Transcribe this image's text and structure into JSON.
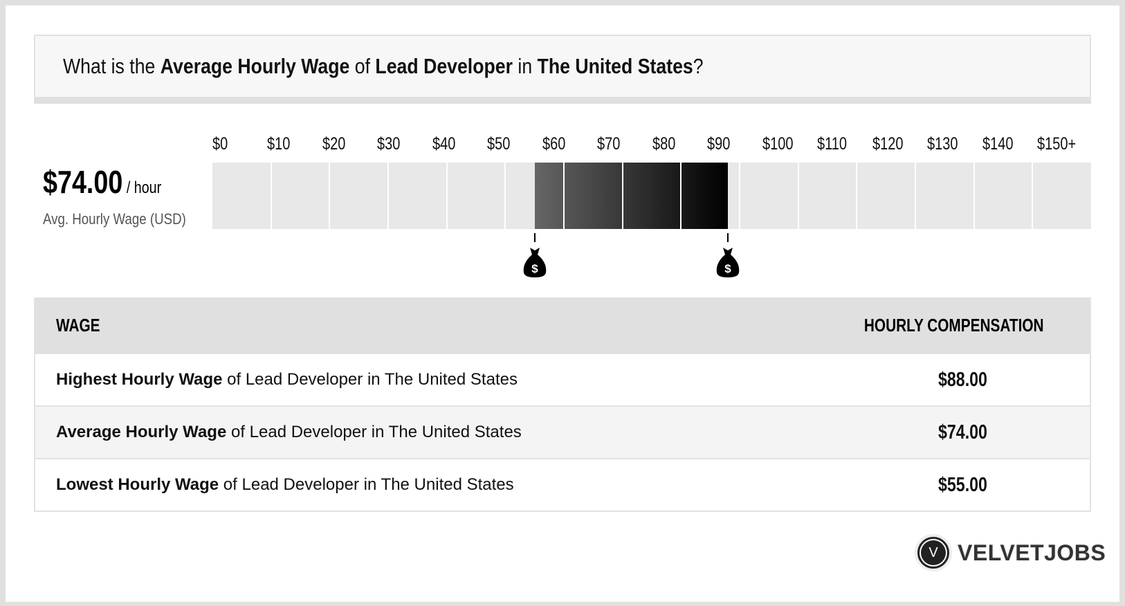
{
  "header": {
    "p1": "What is the ",
    "b1": "Average Hourly Wage",
    "p2": " of ",
    "b2": "Lead Developer",
    "p3": " in ",
    "b3": "The United States",
    "p4": "?"
  },
  "summary": {
    "value": "$74.00",
    "unit": " / hour",
    "label": "Avg. Hourly Wage (USD)"
  },
  "chart_data": {
    "type": "bar",
    "tick_labels": [
      "$0",
      "$10",
      "$20",
      "$30",
      "$40",
      "$50",
      "$60",
      "$70",
      "$80",
      "$90",
      "$100",
      "$110",
      "$120",
      "$130",
      "$140",
      "$150+"
    ],
    "xlim": [
      0,
      150
    ],
    "segments": 15,
    "range": {
      "low": 55,
      "high": 88,
      "average": 74
    },
    "fill_colors": [
      "#666666",
      "#000000"
    ],
    "track_color": "#e8e8e8",
    "markers": [
      {
        "value": 55,
        "icon": "money-bag-icon"
      },
      {
        "value": 88,
        "icon": "money-bag-icon"
      }
    ]
  },
  "table": {
    "headers": [
      "WAGE",
      "HOURLY COMPENSATION"
    ],
    "rows": [
      {
        "bold": "Highest Hourly Wage",
        "rest": " of Lead Developer in The United States",
        "value": "$88.00"
      },
      {
        "bold": "Average Hourly Wage",
        "rest": " of Lead Developer in The United States",
        "value": "$74.00"
      },
      {
        "bold": "Lowest Hourly Wage",
        "rest": " of Lead Developer in The United States",
        "value": "$55.00"
      }
    ]
  },
  "logo": {
    "mark": "V",
    "text": "VELVETJOBS"
  }
}
